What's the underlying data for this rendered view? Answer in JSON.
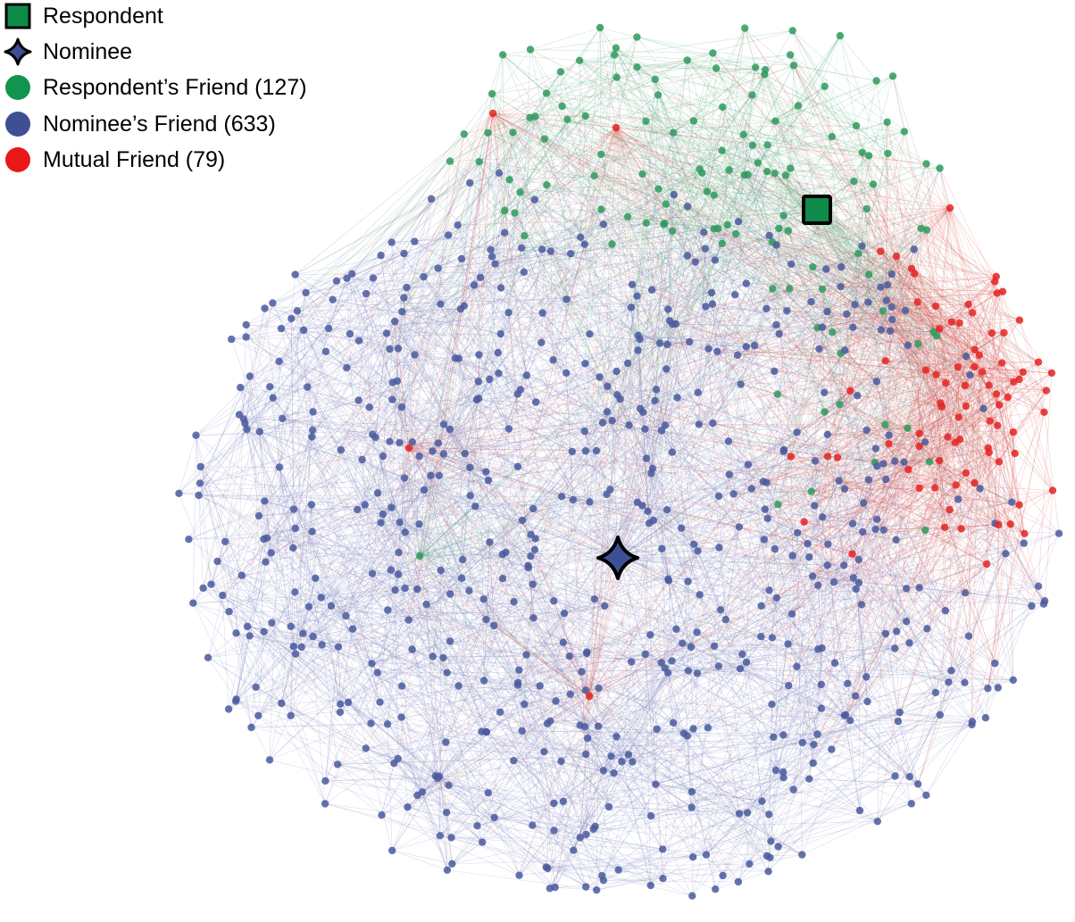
{
  "legend": {
    "respondent": {
      "label": "Respondent",
      "color": "#0f8a4a",
      "icon": "square-icon"
    },
    "nominee": {
      "label": "Nominee",
      "color": "#3e4f94",
      "icon": "star-icon"
    },
    "respondent_friend": {
      "label": "Respondent’s Friend (127)",
      "color": "#12944e",
      "icon": "circle-icon"
    },
    "nominee_friend": {
      "label": "Nominee’s Friend (633)",
      "color": "#3e4f94",
      "icon": "circle-icon"
    },
    "mutual_friend": {
      "label": "Mutual Friend (79)",
      "color": "#e81818",
      "icon": "circle-icon"
    }
  },
  "network": {
    "counts": {
      "respondent_friends": 127,
      "nominee_friends": 633,
      "mutual_friends": 79
    },
    "colors": {
      "respondent_friend_node": "#2f9a5d",
      "nominee_friend_node": "#4a5a9e",
      "mutual_friend_node": "#e42424",
      "respondent_edge": "#4aa877",
      "nominee_edge": "#7c86bf",
      "mutual_edge": "#d9534f"
    }
  }
}
